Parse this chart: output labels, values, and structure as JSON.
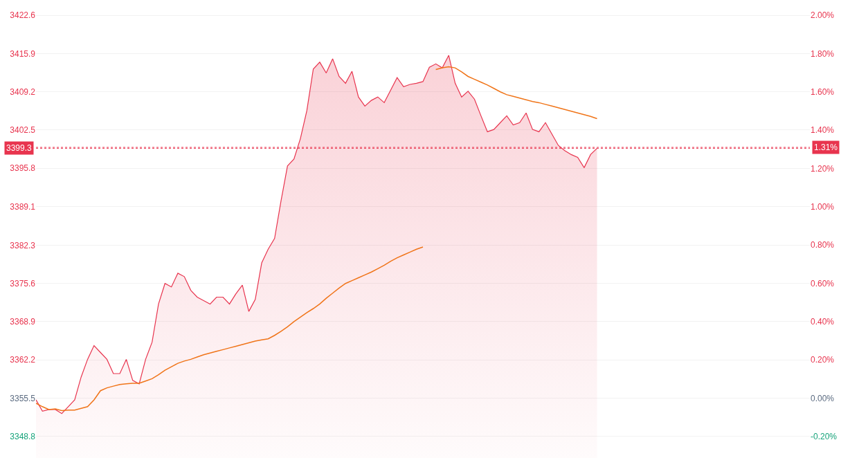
{
  "chart_data": {
    "type": "area",
    "categories": [
      null,
      null,
      null,
      null,
      null,
      null,
      null,
      null,
      null,
      null,
      null,
      null,
      null,
      null,
      null,
      null,
      null,
      null,
      null,
      null,
      null,
      null,
      null,
      null,
      null,
      null,
      null,
      null,
      null,
      null,
      null,
      null,
      null,
      null,
      null,
      null,
      null,
      null,
      null,
      null,
      null,
      null,
      null,
      null,
      null,
      null,
      null,
      null,
      null,
      null,
      null,
      null,
      null,
      null,
      null,
      null,
      null,
      null,
      null,
      null,
      null,
      null,
      null,
      null,
      null,
      null,
      null,
      null,
      null,
      null,
      null,
      null,
      null,
      null,
      null,
      null,
      null,
      null,
      null,
      null,
      null,
      null,
      null,
      null,
      null,
      null,
      null,
      null,
      null,
      null,
      null,
      null,
      null,
      null,
      null,
      null,
      null,
      null,
      null,
      null,
      null,
      null,
      null,
      null,
      null,
      null,
      null,
      null,
      null,
      null,
      null,
      null,
      null,
      null,
      null,
      null,
      null,
      null,
      null,
      null,
      null
    ],
    "series": [
      {
        "color": "#e8344e",
        "values": [
          3355.2,
          3353.2,
          3353.5,
          3353.5,
          3352.8,
          3354.0,
          3355.2,
          3359.2,
          3362.3,
          3364.7,
          3363.5,
          3362.3,
          3359.8,
          3359.8,
          3362.3,
          3358.6,
          3358.0,
          3362.3,
          3365.3,
          3372.0,
          3375.6,
          3375.0,
          3377.4,
          3376.8,
          3374.4,
          3373.2,
          3372.6,
          3372.0,
          3373.2,
          3373.2,
          3372.0,
          3373.8,
          3375.3,
          3370.7,
          3372.8,
          3379.2,
          3381.6,
          3383.5,
          3390.1,
          3396.2,
          3397.4,
          3401.0,
          3405.9,
          3413.2,
          3414.4,
          3412.5,
          3415.0,
          3411.9,
          3410.7,
          3412.8,
          3408.3,
          3406.7,
          3407.7,
          3408.3,
          3407.3,
          3409.5,
          3411.7,
          3410.1,
          3410.5,
          3410.7,
          3411.0,
          3413.5,
          3414.1,
          3413.4,
          3415.6,
          3410.7,
          3408.3,
          3409.3,
          3407.9,
          3405.0,
          3402.2,
          3402.6,
          3403.8,
          3405.0,
          3403.4,
          3403.8,
          3405.5,
          3402.6,
          3402.2,
          3403.8,
          3401.8,
          3399.8,
          3398.9,
          3398.2,
          3397.7,
          3395.9,
          3398.2,
          3399.3,
          null,
          null,
          null,
          null,
          null,
          null,
          null,
          null,
          null,
          null,
          null,
          null,
          null,
          null,
          null,
          null,
          null,
          null,
          null,
          null,
          null,
          null,
          null,
          null,
          null,
          null,
          null,
          null,
          null,
          null,
          null,
          null,
          null
        ]
      },
      {
        "type": "line",
        "color": "#f07418",
        "values": [
          3354.6,
          3354.0,
          3353.5,
          3353.6,
          3353.3,
          3353.4,
          3353.4,
          3353.7,
          3354.0,
          3355.2,
          3356.8,
          3357.3,
          3357.6,
          3357.9,
          3358.0,
          3358.1,
          3358.1,
          3358.5,
          3358.9,
          3359.6,
          3360.4,
          3361.0,
          3361.6,
          3362.0,
          3362.3,
          3362.7,
          3363.1,
          3363.4,
          3363.7,
          3364.0,
          3364.3,
          3364.6,
          3364.9,
          3365.2,
          3365.5,
          3365.7,
          3365.9,
          3366.5,
          3367.2,
          3368.0,
          3368.9,
          3369.7,
          3370.5,
          3371.2,
          3372.0,
          3373.0,
          3373.9,
          3374.8,
          3375.6,
          3376.1,
          3376.6,
          3377.1,
          3377.6,
          3378.2,
          3378.8,
          3379.5,
          3380.1,
          3380.6,
          3381.1,
          3381.6,
          3382.0,
          null,
          3413.1,
          3413.4,
          3413.6,
          3413.4,
          3412.7,
          3411.9,
          3411.4,
          3410.9,
          3410.4,
          3409.8,
          3409.2,
          3408.7,
          3408.4,
          3408.1,
          3407.8,
          3407.5,
          3407.3,
          3407.0,
          3406.7,
          3406.4,
          3406.1,
          3405.8,
          3405.5,
          3405.2,
          3404.9,
          3404.5,
          null,
          null,
          null,
          null,
          null,
          null,
          null,
          null,
          null,
          null,
          null,
          null,
          null,
          null,
          null,
          null,
          null,
          null,
          null,
          null,
          null,
          null,
          null,
          null,
          null,
          null,
          null,
          null,
          null,
          null,
          null,
          null,
          null
        ]
      }
    ],
    "ylim": [
      3345.0,
      3425.3
    ],
    "yticks": [
      3348.8,
      3355.5,
      3362.2,
      3368.9,
      3375.6,
      3382.3,
      3389.1,
      3395.8,
      3402.5,
      3409.2,
      3415.9,
      3422.6
    ],
    "y2lim": [
      -0.313,
      2.08
    ],
    "y2ticks": [
      {
        "value": -0.2,
        "label": "-0.20%"
      },
      {
        "value": 0,
        "label": "0.00%"
      },
      {
        "value": 0.2,
        "label": "0.20%"
      },
      {
        "value": 0.4,
        "label": "0.40%"
      },
      {
        "value": 0.6,
        "label": "0.60%"
      },
      {
        "value": 0.8,
        "label": "0.80%"
      },
      {
        "value": 1.0,
        "label": "1.00%"
      },
      {
        "value": 1.2,
        "label": "1.20%"
      },
      {
        "value": 1.4,
        "label": "1.40%"
      },
      {
        "value": 1.6,
        "label": "1.60%"
      },
      {
        "value": 1.8,
        "label": "1.80%"
      },
      {
        "value": 2.0,
        "label": "2.00%"
      }
    ],
    "ref_lines": [
      {
        "axis": "y",
        "value": 3399.3,
        "label": "3399.3",
        "color": "#e8344e",
        "line_style": "dotted"
      },
      {
        "axis": "y2",
        "value": 1.31,
        "label": "1.31%",
        "color": "#e8344e",
        "line_style": "dotted"
      }
    ],
    "grid": "y",
    "tick_labels": "y"
  }
}
